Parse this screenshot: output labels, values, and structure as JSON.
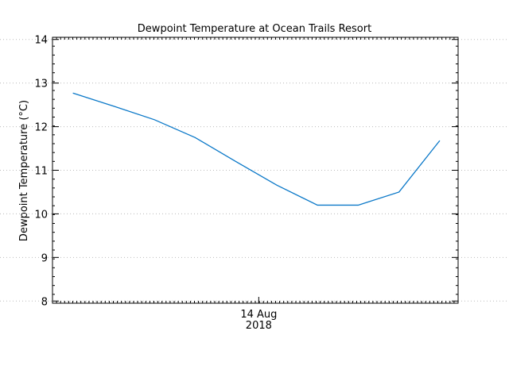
{
  "chart_data": {
    "type": "line",
    "title": "Dewpoint Temperature at Ocean Trails Resort",
    "y_label": "Dewpoint Temperature (°C)",
    "x": [
      0,
      1,
      2,
      3,
      4,
      5,
      6,
      7,
      8,
      9
    ],
    "series": [
      {
        "name": "Dewpoint",
        "color": "#0a78c8",
        "values": [
          12.77,
          12.47,
          12.16,
          11.75,
          11.2,
          10.66,
          10.2,
          10.2,
          10.5,
          11.68
        ]
      }
    ],
    "xlim": [
      -0.5,
      9.45
    ],
    "xticks": [
      {
        "value": 4.56,
        "label": "14 Aug\n2018"
      }
    ],
    "ylim": [
      7.95,
      14.05
    ],
    "yticks": [
      8,
      9,
      10,
      11,
      12,
      13,
      14
    ],
    "grid": true
  }
}
